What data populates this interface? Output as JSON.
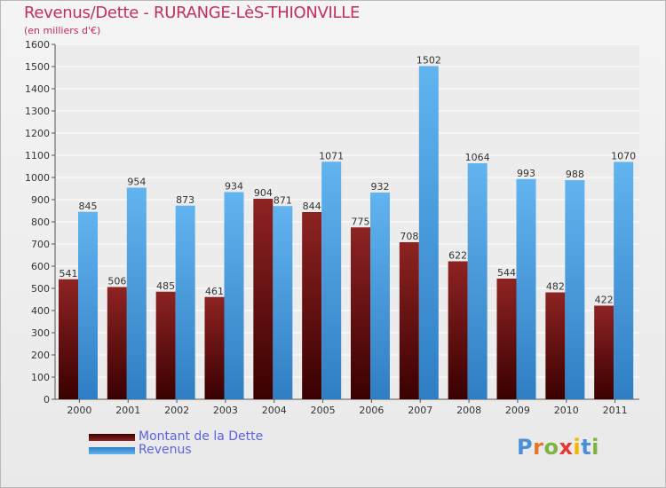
{
  "title": "Revenus/Dette - RURANGE-LèS-THIONVILLE",
  "subtitle": "(en milliers d'€)",
  "chart_data": {
    "type": "bar",
    "categories": [
      "2000",
      "2001",
      "2002",
      "2003",
      "2004",
      "2005",
      "2006",
      "2007",
      "2008",
      "2009",
      "2010",
      "2011"
    ],
    "series": [
      {
        "name": "Montant de la Dette",
        "color": "#7a1414",
        "values": [
          541,
          506,
          485,
          461,
          904,
          844,
          775,
          708,
          622,
          544,
          482,
          422
        ]
      },
      {
        "name": "Revenus",
        "color": "#4fa6e6",
        "values": [
          845,
          954,
          873,
          934,
          871,
          1071,
          932,
          1502,
          1064,
          993,
          988,
          1070
        ]
      }
    ],
    "ylim": [
      0,
      1600
    ],
    "yticks": [
      0,
      100,
      200,
      300,
      400,
      500,
      600,
      700,
      800,
      900,
      1000,
      1100,
      1200,
      1300,
      1400,
      1500,
      1600
    ],
    "grid": true,
    "legend_position": "bottom-left"
  },
  "legend": {
    "debt_label": "Montant de la Dette",
    "revenue_label": "Revenus"
  },
  "logo": {
    "letters": [
      "P",
      "r",
      "o",
      "x",
      "i",
      "t",
      "i"
    ],
    "colors": [
      "#4a90d9",
      "#e8732a",
      "#7cb342",
      "#e53935",
      "#f4b400",
      "#4a90d9",
      "#7cb342"
    ]
  }
}
